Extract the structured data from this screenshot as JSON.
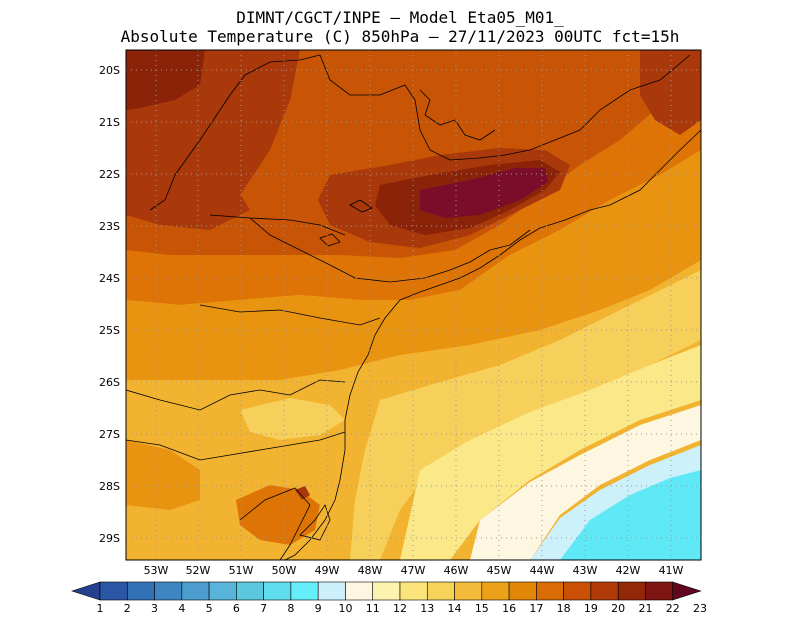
{
  "title_line1": "DIMNT/CGCT/INPE —  Model Eta05_M01_",
  "title_line2": "Absolute Temperature (C) 850hPa —  27/11/2023 00UTC fct=15h",
  "lat_labels": [
    "20S",
    "21S",
    "22S",
    "23S",
    "24S",
    "25S",
    "26S",
    "27S",
    "28S",
    "29S"
  ],
  "lon_labels": [
    "53W",
    "52W",
    "51W",
    "50W",
    "49W",
    "48W",
    "47W",
    "46W",
    "45W",
    "44W",
    "43W",
    "42W",
    "41W"
  ],
  "colorbar": {
    "values": [
      "1",
      "2",
      "3",
      "4",
      "5",
      "6",
      "7",
      "8",
      "9",
      "10",
      "11",
      "12",
      "13",
      "14",
      "15",
      "16",
      "17",
      "18",
      "19",
      "20",
      "21",
      "22",
      "23"
    ],
    "colors": [
      "#24408e",
      "#2b56a6",
      "#3271b6",
      "#3d86c2",
      "#4c9ccf",
      "#58b4d9",
      "#5bc8e0",
      "#5fdced",
      "#65eefa",
      "#cdeffb",
      "#fdf6e0",
      "#fdf2b0",
      "#fbe57a",
      "#f8d35a",
      "#f2bb3a",
      "#eba219",
      "#e38708",
      "#d96c05",
      "#c95004",
      "#b03a08",
      "#932709",
      "#7d1612",
      "#61061f"
    ]
  },
  "palette": {
    "darkest": "#7a0e2a",
    "deep_red": "#8b2309",
    "red": "#a9380a",
    "brown_orange": "#c85405",
    "orange": "#df7406",
    "light_orange": "#e99411",
    "amber": "#f1b330",
    "yellow": "#f6d05a",
    "pale_yellow": "#fbe889",
    "cream": "#fdf6e0",
    "pale_cyan": "#cdf1fb",
    "cyan": "#5fe8f6"
  }
}
